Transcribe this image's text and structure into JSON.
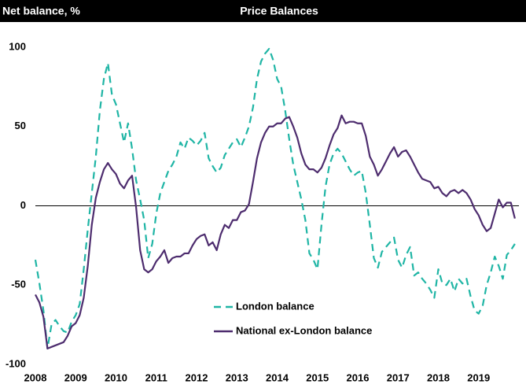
{
  "chart_data": {
    "type": "line",
    "title": "Price Balances",
    "y_label": "Net balance, %",
    "x": [
      2008,
      2008.1,
      2008.2,
      2008.3,
      2008.4,
      2008.5,
      2008.6,
      2008.7,
      2008.8,
      2008.9,
      2009,
      2009.1,
      2009.2,
      2009.3,
      2009.4,
      2009.5,
      2009.6,
      2009.7,
      2009.8,
      2009.9,
      2010,
      2010.1,
      2010.2,
      2010.3,
      2010.4,
      2010.5,
      2010.6,
      2010.7,
      2010.8,
      2010.9,
      2011,
      2011.1,
      2011.2,
      2011.3,
      2011.4,
      2011.5,
      2011.6,
      2011.7,
      2011.8,
      2011.9,
      2012,
      2012.1,
      2012.2,
      2012.3,
      2012.4,
      2012.5,
      2012.6,
      2012.7,
      2012.8,
      2012.9,
      2013,
      2013.1,
      2013.2,
      2013.3,
      2013.4,
      2013.5,
      2013.6,
      2013.7,
      2013.8,
      2013.9,
      2014,
      2014.1,
      2014.2,
      2014.3,
      2014.4,
      2014.5,
      2014.6,
      2014.7,
      2014.8,
      2014.9,
      2015,
      2015.1,
      2015.2,
      2015.3,
      2015.4,
      2015.5,
      2015.6,
      2015.7,
      2015.8,
      2015.9,
      2016,
      2016.1,
      2016.2,
      2016.3,
      2016.4,
      2016.5,
      2016.6,
      2016.7,
      2016.8,
      2016.9,
      2017,
      2017.1,
      2017.2,
      2017.3,
      2017.4,
      2017.5,
      2017.6,
      2017.7,
      2017.8,
      2017.9,
      2018,
      2018.1,
      2018.2,
      2018.3,
      2018.4,
      2018.5,
      2018.6,
      2018.7,
      2018.8,
      2018.9,
      2019,
      2019.1,
      2019.2,
      2019.3,
      2019.4,
      2019.5,
      2019.6,
      2019.7,
      2019.8,
      2019.9
    ],
    "series": [
      {
        "name": "London balance",
        "color": "#1fb5a5",
        "style": "dashed",
        "values": [
          -34,
          -49,
          -66,
          -90,
          -75,
          -72,
          -76,
          -79,
          -80,
          -73,
          -69,
          -62,
          -40,
          -15,
          8,
          31,
          60,
          80,
          90,
          70,
          64,
          52,
          40,
          52,
          36,
          16,
          4,
          -9,
          -33,
          -24,
          -5,
          8,
          15,
          22,
          26,
          31,
          40,
          36,
          43,
          41,
          38,
          41,
          46,
          30,
          25,
          21,
          24,
          32,
          36,
          40,
          42,
          37,
          43,
          50,
          62,
          80,
          91,
          96,
          99,
          92,
          80,
          75,
          60,
          42,
          26,
          15,
          4,
          -9,
          -30,
          -34,
          -40,
          -12,
          12,
          26,
          33,
          36,
          33,
          28,
          23,
          19,
          21,
          22,
          8,
          -12,
          -33,
          -39,
          -29,
          -26,
          -23,
          -20,
          -34,
          -39,
          -31,
          -26,
          -44,
          -42,
          -46,
          -49,
          -53,
          -58,
          -40,
          -49,
          -50,
          -46,
          -54,
          -46,
          -49,
          -46,
          -57,
          -66,
          -68,
          -63,
          -50,
          -42,
          -32,
          -38,
          -46,
          -31,
          -28,
          -24
        ]
      },
      {
        "name": "National ex-London balance",
        "color": "#4d2c6e",
        "style": "solid",
        "values": [
          -56,
          -61,
          -70,
          -90,
          -89,
          -88,
          -87,
          -86,
          -82,
          -76,
          -74,
          -69,
          -58,
          -38,
          -12,
          5,
          15,
          23,
          27,
          23,
          20,
          14,
          11,
          16,
          19,
          -1,
          -28,
          -40,
          -42,
          -40,
          -35,
          -32,
          -28,
          -36,
          -33,
          -32,
          -32,
          -30,
          -30,
          -25,
          -21,
          -19,
          -18,
          -25,
          -23,
          -28,
          -18,
          -12,
          -14,
          -9,
          -9,
          -4,
          -3,
          1,
          15,
          30,
          40,
          46,
          50,
          50,
          52,
          52,
          55,
          56,
          50,
          43,
          33,
          26,
          23,
          23,
          21,
          24,
          30,
          38,
          45,
          49,
          57,
          52,
          53,
          53,
          52,
          52,
          44,
          31,
          26,
          19,
          23,
          28,
          33,
          37,
          31,
          34,
          35,
          31,
          26,
          21,
          17,
          16,
          15,
          11,
          12,
          8,
          6,
          9,
          10,
          8,
          10,
          8,
          4,
          -2,
          -6,
          -12,
          -16,
          -14,
          -5,
          4,
          -1,
          2,
          2,
          -8
        ]
      }
    ],
    "xlim": [
      2008,
      2020
    ],
    "xticks": [
      2008,
      2009,
      2010,
      2011,
      2012,
      2013,
      2014,
      2015,
      2016,
      2017,
      2018,
      2019
    ],
    "ylim": [
      -100,
      100
    ],
    "yticks": [
      -100,
      -50,
      0,
      50,
      100
    ],
    "grid": false,
    "legend": "lower center"
  }
}
